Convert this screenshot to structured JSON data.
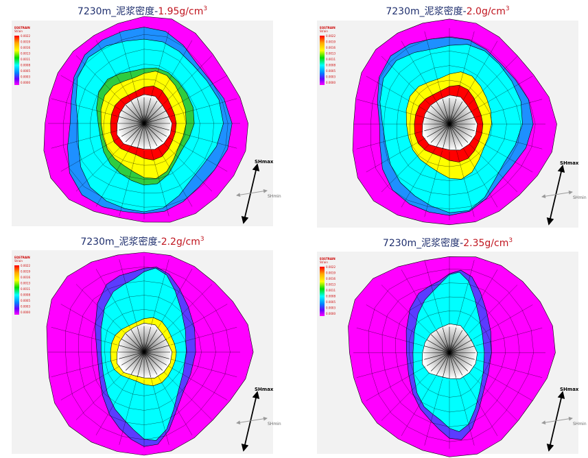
{
  "panels": [
    {
      "title": {
        "prefix": "7230m_泥浆密度-",
        "value": "1.95g/cm",
        "sup": "3"
      },
      "legend": {
        "title": "EQSTRAIN",
        "unit": "Strain",
        "labels": [
          "0.0022",
          "0.0019",
          "0.0016",
          "0.0013",
          "0.0011",
          "0.0008",
          "0.0005",
          "0.0003",
          "0.0000"
        ]
      },
      "shmax": "SHmax",
      "shmin": "SHmin"
    },
    {
      "title": {
        "prefix": "7230m_泥浆密度-",
        "value": "2.0g/cm",
        "sup": "3"
      },
      "legend": {
        "title": "EQSTRAIN",
        "unit": "Strain",
        "labels": [
          "0.0022",
          "0.0019",
          "0.0016",
          "0.0013",
          "0.0011",
          "0.0008",
          "0.0005",
          "0.0003",
          "0.0000"
        ]
      },
      "shmax": "SHmax",
      "shmin": "SHmin"
    },
    {
      "title": {
        "prefix": "7230m_泥浆密度-",
        "value": "2.2g/cm",
        "sup": "3"
      },
      "legend": {
        "title": "EQSTRAIN",
        "unit": "Strain",
        "labels": [
          "0.0022",
          "0.0019",
          "0.0016",
          "0.0013",
          "0.0011",
          "0.0008",
          "0.0005",
          "0.0003",
          "0.0000"
        ]
      },
      "shmax": "SHmax",
      "shmin": "SHmin"
    },
    {
      "title": {
        "prefix": "7230m_泥浆密度-",
        "value": "2.35g/cm",
        "sup": "3"
      },
      "legend": {
        "title": "EQSTRAIN",
        "unit": "Strain",
        "labels": [
          "0.0022",
          "0.0019",
          "0.0016",
          "0.0013",
          "0.0011",
          "0.0008",
          "0.0005",
          "0.0003",
          "0.0000"
        ]
      },
      "shmax": "SHmax",
      "shmin": "SHmin"
    }
  ]
}
